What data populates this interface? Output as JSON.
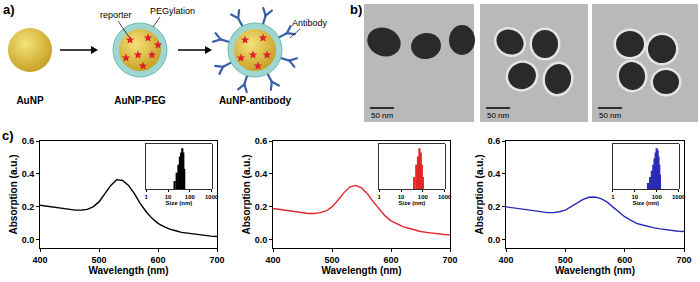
{
  "schematic": {
    "label": "a)",
    "stages": [
      "AuNP",
      "AuNP-PEG",
      "AuNP-antibody"
    ],
    "reporter": "reporter",
    "pegylation": "PEGylation",
    "antibody": "Antibody"
  },
  "tem": {
    "label": "b)",
    "scale_bars": [
      "50 nm",
      "50 nm",
      "50 nm"
    ]
  },
  "chart_label": "c)",
  "chart_data": [
    {
      "type": "line",
      "x_label": "Wavelength (nm)",
      "y_label": "Absorption (a.u.)",
      "x": [
        400,
        410,
        420,
        430,
        440,
        450,
        460,
        470,
        480,
        490,
        500,
        510,
        520,
        530,
        540,
        550,
        560,
        570,
        580,
        590,
        600,
        610,
        620,
        630,
        640,
        650,
        660,
        670,
        680,
        690,
        700
      ],
      "series": [
        {
          "color": "#000000",
          "values": [
            0.21,
            0.205,
            0.2,
            0.195,
            0.19,
            0.185,
            0.18,
            0.18,
            0.185,
            0.2,
            0.23,
            0.28,
            0.33,
            0.365,
            0.36,
            0.33,
            0.28,
            0.22,
            0.17,
            0.13,
            0.1,
            0.08,
            0.065,
            0.055,
            0.045,
            0.04,
            0.035,
            0.03,
            0.025,
            0.022,
            0.02
          ]
        }
      ],
      "xlim": [
        400,
        700
      ],
      "xticks": [
        400,
        500,
        600,
        700
      ],
      "ylim": [
        -0.05,
        0.6
      ],
      "yticks": [
        {
          "value": 0,
          "label": "0.0"
        },
        0.2,
        0.4,
        0.6
      ],
      "inset": {
        "type": "bar",
        "x_label": "Size (nm)",
        "x": [
          20,
          25,
          30,
          35,
          40,
          45,
          50,
          55
        ],
        "values": [
          0.2,
          0.4,
          0.6,
          0.8,
          0.9,
          1.0,
          0.9,
          0.5
        ],
        "color": "#000000",
        "log": "x",
        "xlim": [
          1,
          1000
        ],
        "xticks": [
          1,
          10,
          100,
          1000
        ],
        "ylim": [
          0,
          1.1
        ],
        "tick_labels": "x"
      }
    },
    {
      "type": "line",
      "x_label": "Wavelength (nm)",
      "y_label": "Absorption (a.u.)",
      "x": [
        400,
        410,
        420,
        430,
        440,
        450,
        460,
        470,
        480,
        490,
        500,
        510,
        520,
        530,
        540,
        550,
        560,
        570,
        580,
        590,
        600,
        610,
        620,
        630,
        640,
        650,
        660,
        670,
        680,
        690,
        700
      ],
      "series": [
        {
          "color": "#e3262b",
          "values": [
            0.19,
            0.185,
            0.18,
            0.175,
            0.17,
            0.165,
            0.16,
            0.16,
            0.165,
            0.175,
            0.2,
            0.24,
            0.285,
            0.32,
            0.33,
            0.315,
            0.28,
            0.23,
            0.185,
            0.145,
            0.115,
            0.095,
            0.08,
            0.07,
            0.06,
            0.05,
            0.045,
            0.04,
            0.035,
            0.032,
            0.03
          ]
        }
      ],
      "xlim": [
        400,
        700
      ],
      "xticks": [
        400,
        500,
        600,
        700
      ],
      "ylim": [
        -0.05,
        0.6
      ],
      "yticks": [
        {
          "value": 0,
          "label": "0.0"
        },
        0.2,
        0.4,
        0.6
      ],
      "inset": {
        "type": "bar",
        "x_label": "Size (nm)",
        "x": [
          40,
          50,
          60,
          70,
          80,
          90,
          100
        ],
        "values": [
          0.3,
          0.6,
          0.8,
          1.0,
          0.9,
          0.6,
          0.3
        ],
        "color": "#e3262b",
        "log": "x",
        "xlim": [
          1,
          1000
        ],
        "xticks": [
          1,
          10,
          100,
          1000
        ],
        "ylim": [
          0,
          1.1
        ],
        "tick_labels": "x"
      }
    },
    {
      "type": "line",
      "x_label": "Wavelength (nm)",
      "y_label": "Absorption (a.u.)",
      "x": [
        400,
        410,
        420,
        430,
        440,
        450,
        460,
        470,
        480,
        490,
        500,
        510,
        520,
        530,
        540,
        550,
        560,
        570,
        580,
        590,
        600,
        610,
        620,
        630,
        640,
        650,
        660,
        670,
        680,
        690,
        700
      ],
      "series": [
        {
          "color": "#2b2bb8",
          "values": [
            0.2,
            0.195,
            0.19,
            0.185,
            0.18,
            0.175,
            0.17,
            0.165,
            0.165,
            0.17,
            0.18,
            0.2,
            0.225,
            0.245,
            0.258,
            0.26,
            0.25,
            0.23,
            0.2,
            0.17,
            0.14,
            0.12,
            0.1,
            0.09,
            0.08,
            0.072,
            0.066,
            0.06,
            0.056,
            0.052,
            0.05
          ]
        }
      ],
      "xlim": [
        400,
        700
      ],
      "xticks": [
        400,
        500,
        600,
        700
      ],
      "ylim": [
        -0.05,
        0.6
      ],
      "yticks": [
        {
          "value": 0,
          "label": "0.0"
        },
        0.2,
        0.4,
        0.6
      ],
      "inset": {
        "type": "bar",
        "x_label": "Size (nm)",
        "x": [
          40,
          50,
          60,
          70,
          80,
          90,
          100,
          110,
          120,
          130,
          140
        ],
        "values": [
          0.15,
          0.3,
          0.45,
          0.6,
          0.75,
          0.9,
          1.0,
          0.95,
          0.8,
          0.6,
          0.35
        ],
        "color": "#2b2bb8",
        "log": "x",
        "xlim": [
          1,
          1000
        ],
        "xticks": [
          1,
          10,
          100,
          1000
        ],
        "ylim": [
          0,
          1.1
        ],
        "tick_labels": "x"
      }
    }
  ]
}
